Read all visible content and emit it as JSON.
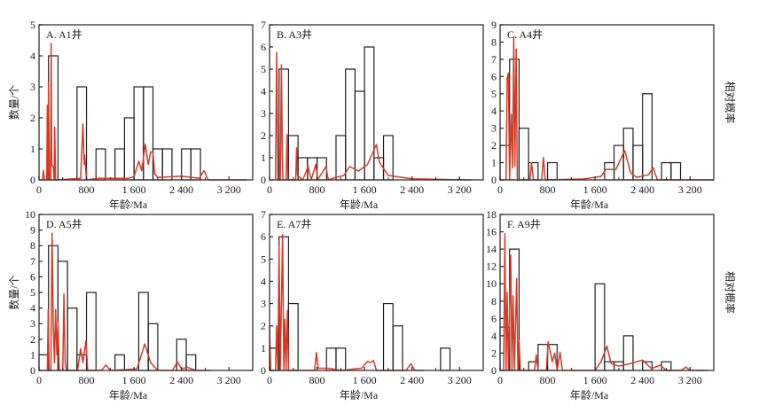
{
  "chart_data": [
    {
      "type": "bar",
      "panel_label": "A. A1井",
      "xlabel": "年龄/Ma",
      "ylabel": "数量/个",
      "y2label": "",
      "xlim": [
        0,
        3600
      ],
      "ylim": [
        0,
        5
      ],
      "xticks": [
        0,
        800,
        1600,
        2400,
        3200
      ],
      "xtick_labels": [
        "0",
        "800",
        "1 600",
        "2 400",
        "3 200"
      ],
      "yticks": [
        0,
        1,
        2,
        3,
        4,
        5
      ],
      "bin_width": 160,
      "bins": [
        {
          "start": 160,
          "count": 4
        },
        {
          "start": 640,
          "count": 3
        },
        {
          "start": 960,
          "count": 1
        },
        {
          "start": 1280,
          "count": 1
        },
        {
          "start": 1440,
          "count": 2
        },
        {
          "start": 1600,
          "count": 3
        },
        {
          "start": 1760,
          "count": 3
        },
        {
          "start": 1920,
          "count": 1
        },
        {
          "start": 2080,
          "count": 1
        },
        {
          "start": 2400,
          "count": 1
        },
        {
          "start": 2560,
          "count": 1
        }
      ],
      "pdp_curve": [
        [
          60,
          0
        ],
        [
          75,
          0.3
        ],
        [
          90,
          0
        ],
        [
          130,
          0
        ],
        [
          140,
          2.4
        ],
        [
          150,
          0
        ],
        [
          160,
          3.15
        ],
        [
          175,
          0
        ],
        [
          195,
          0
        ],
        [
          205,
          4.4
        ],
        [
          215,
          0.5
        ],
        [
          240,
          0.4
        ],
        [
          255,
          0
        ],
        [
          265,
          1.7
        ],
        [
          280,
          0
        ],
        [
          300,
          0
        ],
        [
          700,
          0.05
        ],
        [
          740,
          1.8
        ],
        [
          760,
          0.5
        ],
        [
          770,
          0.8
        ],
        [
          800,
          0
        ],
        [
          1000,
          0.05
        ],
        [
          1500,
          0.05
        ],
        [
          1600,
          0.1
        ],
        [
          1680,
          0.6
        ],
        [
          1730,
          0.3
        ],
        [
          1790,
          1.15
        ],
        [
          1840,
          0.5
        ],
        [
          1880,
          0.9
        ],
        [
          1920,
          0.9
        ],
        [
          1950,
          0.2
        ],
        [
          2000,
          0.08
        ],
        [
          2400,
          0.12
        ],
        [
          2700,
          0.05
        ],
        [
          2780,
          0.3
        ],
        [
          2850,
          0
        ],
        [
          3500,
          0
        ]
      ]
    },
    {
      "type": "bar",
      "panel_label": "B. A3井",
      "xlabel": "年龄/Ma",
      "ylabel": "",
      "y2label": "",
      "xlim": [
        0,
        3600
      ],
      "ylim": [
        0,
        7
      ],
      "xticks": [
        0,
        800,
        1600,
        2400,
        3200
      ],
      "xtick_labels": [
        "0",
        "800",
        "1 600",
        "2 400",
        "3 200"
      ],
      "yticks": [
        0,
        1,
        2,
        3,
        4,
        5,
        6,
        7
      ],
      "bin_width": 160,
      "bins": [
        {
          "start": 160,
          "count": 5
        },
        {
          "start": 320,
          "count": 2
        },
        {
          "start": 480,
          "count": 1
        },
        {
          "start": 640,
          "count": 1
        },
        {
          "start": 800,
          "count": 1
        },
        {
          "start": 1120,
          "count": 2
        },
        {
          "start": 1280,
          "count": 5
        },
        {
          "start": 1440,
          "count": 4
        },
        {
          "start": 1600,
          "count": 6
        },
        {
          "start": 1760,
          "count": 1
        },
        {
          "start": 1920,
          "count": 2
        }
      ],
      "pdp_curve": [
        [
          100,
          0
        ],
        [
          120,
          5.75
        ],
        [
          140,
          0
        ],
        [
          180,
          0
        ],
        [
          200,
          5.2
        ],
        [
          215,
          1.1
        ],
        [
          225,
          0
        ],
        [
          280,
          0
        ],
        [
          295,
          2.05
        ],
        [
          310,
          0
        ],
        [
          440,
          0
        ],
        [
          455,
          1.45
        ],
        [
          470,
          0.2
        ],
        [
          560,
          0
        ],
        [
          650,
          0.6
        ],
        [
          700,
          0
        ],
        [
          780,
          0.7
        ],
        [
          810,
          0
        ],
        [
          950,
          0.6
        ],
        [
          990,
          0
        ],
        [
          1100,
          0.1
        ],
        [
          1250,
          0.2
        ],
        [
          1350,
          0.6
        ],
        [
          1500,
          0.4
        ],
        [
          1650,
          0.7
        ],
        [
          1800,
          1.6
        ],
        [
          1850,
          0.8
        ],
        [
          2000,
          0.2
        ],
        [
          2400,
          0.05
        ],
        [
          3400,
          0
        ]
      ]
    },
    {
      "type": "bar",
      "panel_label": "C. A4井",
      "xlabel": "年龄/Ma",
      "ylabel": "",
      "y2label": "相对概率",
      "xlim": [
        0,
        3600
      ],
      "ylim": [
        0,
        9
      ],
      "xticks": [
        0,
        800,
        1600,
        2400,
        3200
      ],
      "xtick_labels": [
        "0",
        "800",
        "1 600",
        "2 400",
        "3 200"
      ],
      "yticks": [
        0,
        1,
        2,
        3,
        4,
        5,
        6,
        7,
        8,
        9
      ],
      "bin_width": 160,
      "bins": [
        {
          "start": 0,
          "count": 2
        },
        {
          "start": 160,
          "count": 7
        },
        {
          "start": 320,
          "count": 3
        },
        {
          "start": 480,
          "count": 1
        },
        {
          "start": 800,
          "count": 1
        },
        {
          "start": 1760,
          "count": 1
        },
        {
          "start": 1920,
          "count": 2
        },
        {
          "start": 2080,
          "count": 3
        },
        {
          "start": 2240,
          "count": 2
        },
        {
          "start": 2400,
          "count": 5
        },
        {
          "start": 2720,
          "count": 1
        },
        {
          "start": 2880,
          "count": 1
        }
      ],
      "pdp_curve": [
        [
          100,
          0
        ],
        [
          120,
          5.9
        ],
        [
          140,
          6.2
        ],
        [
          160,
          0
        ],
        [
          190,
          3.8
        ],
        [
          210,
          0.7
        ],
        [
          230,
          8.3
        ],
        [
          250,
          0.8
        ],
        [
          270,
          7.6
        ],
        [
          290,
          0
        ],
        [
          500,
          0
        ],
        [
          530,
          1.0
        ],
        [
          560,
          0
        ],
        [
          700,
          0
        ],
        [
          730,
          1.3
        ],
        [
          760,
          0
        ],
        [
          1400,
          0.05
        ],
        [
          1700,
          0.2
        ],
        [
          1780,
          0.6
        ],
        [
          1950,
          0.6
        ],
        [
          2100,
          1.7
        ],
        [
          2200,
          0.4
        ],
        [
          2300,
          0.15
        ],
        [
          2500,
          0.3
        ],
        [
          2580,
          0.7
        ],
        [
          2650,
          0
        ],
        [
          3600,
          0
        ]
      ]
    },
    {
      "type": "bar",
      "panel_label": "D. A5井",
      "xlabel": "年龄/Ma",
      "ylabel": "数量/个",
      "y2label": "",
      "xlim": [
        0,
        3600
      ],
      "ylim": [
        0,
        10
      ],
      "xticks": [
        0,
        800,
        1600,
        2400,
        3200
      ],
      "xtick_labels": [
        "0",
        "800",
        "1 600",
        "2 400",
        "3 200"
      ],
      "yticks": [
        0,
        1,
        2,
        3,
        4,
        5,
        6,
        7,
        8,
        9,
        10
      ],
      "bin_width": 160,
      "bins": [
        {
          "start": 0,
          "count": 1
        },
        {
          "start": 160,
          "count": 8
        },
        {
          "start": 320,
          "count": 7
        },
        {
          "start": 480,
          "count": 4
        },
        {
          "start": 640,
          "count": 1
        },
        {
          "start": 800,
          "count": 5
        },
        {
          "start": 1280,
          "count": 1
        },
        {
          "start": 1680,
          "count": 5
        },
        {
          "start": 1840,
          "count": 3
        },
        {
          "start": 2320,
          "count": 2
        },
        {
          "start": 2480,
          "count": 1
        }
      ],
      "pdp_curve": [
        [
          140,
          0
        ],
        [
          155,
          3.9
        ],
        [
          170,
          0
        ],
        [
          200,
          0
        ],
        [
          220,
          8.8
        ],
        [
          240,
          3.0
        ],
        [
          260,
          0.5
        ],
        [
          280,
          3.9
        ],
        [
          300,
          1.0
        ],
        [
          320,
          3.1
        ],
        [
          340,
          0
        ],
        [
          400,
          0
        ],
        [
          420,
          4.9
        ],
        [
          440,
          0.5
        ],
        [
          460,
          0
        ],
        [
          650,
          0
        ],
        [
          700,
          1.4
        ],
        [
          740,
          0.5
        ],
        [
          790,
          1.9
        ],
        [
          820,
          0
        ],
        [
          1050,
          0
        ],
        [
          1130,
          0.35
        ],
        [
          1200,
          0
        ],
        [
          1650,
          0.1
        ],
        [
          1780,
          1.7
        ],
        [
          1880,
          0.5
        ],
        [
          2000,
          0
        ],
        [
          2250,
          0
        ],
        [
          2330,
          0.55
        ],
        [
          2400,
          0.1
        ],
        [
          2500,
          0.2
        ],
        [
          2640,
          0
        ],
        [
          2900,
          0
        ]
      ]
    },
    {
      "type": "bar",
      "panel_label": "E. A7井",
      "xlabel": "年龄/Ma",
      "ylabel": "",
      "y2label": "",
      "xlim": [
        0,
        3600
      ],
      "ylim": [
        0,
        7
      ],
      "xticks": [
        0,
        800,
        1600,
        2400,
        3200
      ],
      "xtick_labels": [
        "0",
        "800",
        "1 600",
        "2 400",
        "3 200"
      ],
      "yticks": [
        0,
        1,
        2,
        3,
        4,
        5,
        6,
        7
      ],
      "bin_width": 160,
      "bins": [
        {
          "start": 0,
          "count": 1
        },
        {
          "start": 160,
          "count": 6
        },
        {
          "start": 320,
          "count": 3
        },
        {
          "start": 960,
          "count": 1
        },
        {
          "start": 1120,
          "count": 1
        },
        {
          "start": 1920,
          "count": 3
        },
        {
          "start": 2080,
          "count": 2
        },
        {
          "start": 2880,
          "count": 1
        }
      ],
      "pdp_curve": [
        [
          0,
          2.0
        ],
        [
          20,
          0
        ],
        [
          100,
          0
        ],
        [
          120,
          2.0
        ],
        [
          140,
          0
        ],
        [
          160,
          5.6
        ],
        [
          180,
          0
        ],
        [
          220,
          6.1
        ],
        [
          240,
          0
        ],
        [
          260,
          2.3
        ],
        [
          280,
          0
        ],
        [
          300,
          2.7
        ],
        [
          320,
          0
        ],
        [
          760,
          0
        ],
        [
          790,
          0.8
        ],
        [
          820,
          0.1
        ],
        [
          1000,
          0.1
        ],
        [
          1200,
          0
        ],
        [
          1550,
          0.1
        ],
        [
          1650,
          0.4
        ],
        [
          1700,
          0.35
        ],
        [
          1750,
          0.45
        ],
        [
          1800,
          0
        ],
        [
          2300,
          0
        ],
        [
          2380,
          0.3
        ],
        [
          2450,
          0
        ],
        [
          2600,
          0
        ]
      ]
    },
    {
      "type": "bar",
      "panel_label": "F. A9井",
      "xlabel": "年龄/Ma",
      "ylabel": "",
      "y2label": "相对概率",
      "xlim": [
        0,
        3600
      ],
      "ylim": [
        0,
        18
      ],
      "xticks": [
        0,
        800,
        1600,
        2400,
        3200
      ],
      "xtick_labels": [
        "0",
        "800",
        "1 600",
        "2 400",
        "3 200"
      ],
      "yticks": [
        0,
        2,
        4,
        6,
        8,
        10,
        12,
        14,
        16,
        18
      ],
      "bin_width": 160,
      "bins": [
        {
          "start": 0,
          "count": 5
        },
        {
          "start": 160,
          "count": 14
        },
        {
          "start": 480,
          "count": 1
        },
        {
          "start": 640,
          "count": 3
        },
        {
          "start": 800,
          "count": 3
        },
        {
          "start": 1600,
          "count": 10
        },
        {
          "start": 1760,
          "count": 1
        },
        {
          "start": 1920,
          "count": 1
        },
        {
          "start": 2080,
          "count": 4
        },
        {
          "start": 2400,
          "count": 1
        },
        {
          "start": 2720,
          "count": 1
        }
      ],
      "pdp_curve": [
        [
          60,
          0
        ],
        [
          80,
          15.8
        ],
        [
          100,
          0
        ],
        [
          120,
          9.0
        ],
        [
          140,
          0
        ],
        [
          180,
          13.3
        ],
        [
          200,
          0
        ],
        [
          220,
          8.6
        ],
        [
          240,
          0
        ],
        [
          280,
          10.6
        ],
        [
          300,
          0
        ],
        [
          320,
          3.5
        ],
        [
          340,
          0
        ],
        [
          580,
          0
        ],
        [
          610,
          1.8
        ],
        [
          640,
          0
        ],
        [
          780,
          0
        ],
        [
          810,
          3.3
        ],
        [
          850,
          2.0
        ],
        [
          880,
          1.0
        ],
        [
          920,
          2.0
        ],
        [
          960,
          0
        ],
        [
          1010,
          2.1
        ],
        [
          1050,
          0
        ],
        [
          1600,
          0
        ],
        [
          1700,
          1.0
        ],
        [
          1800,
          2.8
        ],
        [
          1870,
          0.8
        ],
        [
          2000,
          0.5
        ],
        [
          2200,
          0.8
        ],
        [
          2400,
          1.2
        ],
        [
          2550,
          0.2
        ],
        [
          2700,
          0.6
        ],
        [
          2800,
          0
        ],
        [
          3050,
          0
        ],
        [
          3130,
          0.4
        ],
        [
          3200,
          0
        ],
        [
          3500,
          0
        ]
      ]
    }
  ]
}
